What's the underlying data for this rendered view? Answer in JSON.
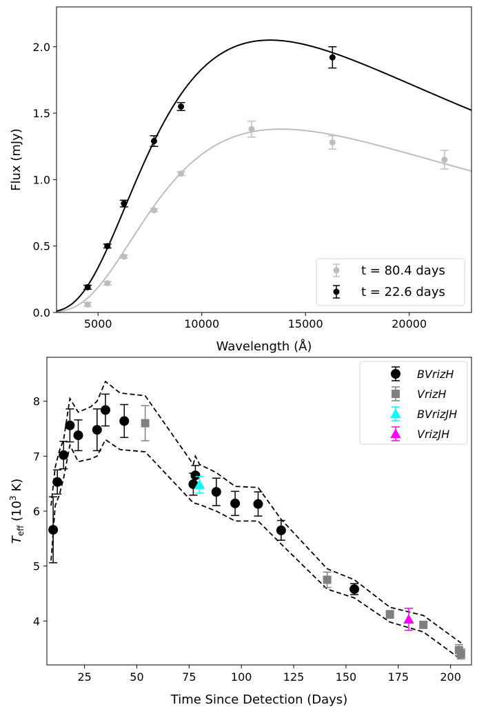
{
  "chart_data": [
    {
      "type": "line",
      "xlabel": "Wavelength (Å)",
      "ylabel": "Flux (mJy)",
      "xlim": [
        3000,
        23000
      ],
      "ylim": [
        0.0,
        2.3
      ],
      "xticks": [
        5000,
        10000,
        15000,
        20000
      ],
      "xtick_labels": [
        "5000",
        "10000",
        "15000",
        "20000"
      ],
      "yticks": [
        0.0,
        0.5,
        1.0,
        1.5,
        2.0
      ],
      "ytick_labels": [
        "0.0",
        "0.5",
        "1.0",
        "1.5",
        "2.0"
      ],
      "grid": false,
      "legend_position": "lower-right",
      "series": [
        {
          "name": "t = 80.4 days",
          "color": "#bdbdbd",
          "model": "blackbody",
          "peak_wavelength": 13000,
          "peak_flux": 1.38,
          "points": [
            {
              "x": 4500,
              "y": 0.06,
              "err": 0.015
            },
            {
              "x": 5450,
              "y": 0.22,
              "err": 0.012
            },
            {
              "x": 6250,
              "y": 0.42,
              "err": 0.012
            },
            {
              "x": 7700,
              "y": 0.77,
              "err": 0.012
            },
            {
              "x": 9000,
              "y": 1.045,
              "err": 0.015
            },
            {
              "x": 12400,
              "y": 1.38,
              "err": 0.06
            },
            {
              "x": 16300,
              "y": 1.28,
              "err": 0.05
            },
            {
              "x": 21700,
              "y": 1.15,
              "err": 0.07
            }
          ]
        },
        {
          "name": "t = 22.6 days",
          "color": "#000000",
          "model": "blackbody",
          "peak_wavelength": 12500,
          "peak_flux": 2.05,
          "points": [
            {
              "x": 4500,
              "y": 0.19,
              "err": 0.015
            },
            {
              "x": 5450,
              "y": 0.5,
              "err": 0.015
            },
            {
              "x": 6250,
              "y": 0.82,
              "err": 0.025
            },
            {
              "x": 7700,
              "y": 1.29,
              "err": 0.04
            },
            {
              "x": 9000,
              "y": 1.55,
              "err": 0.03
            },
            {
              "x": 16300,
              "y": 1.92,
              "err": 0.08
            }
          ]
        }
      ]
    },
    {
      "type": "scatter",
      "xlabel": "Time Since Detection (Days)",
      "ylabel_main": "T",
      "ylabel_sub": "eff",
      "ylabel_rest": " (10",
      "ylabel_sup": "3",
      "ylabel_unit": " K)",
      "xlim": [
        7,
        210
      ],
      "ylim": [
        3.2,
        8.8
      ],
      "xticks": [
        25,
        50,
        75,
        100,
        125,
        150,
        175,
        200
      ],
      "xtick_labels": [
        "25",
        "50",
        "75",
        "100",
        "125",
        "150",
        "175",
        "200"
      ],
      "yticks": [
        4,
        5,
        6,
        7,
        8
      ],
      "ytick_labels": [
        "4",
        "5",
        "6",
        "7",
        "8"
      ],
      "grid": false,
      "legend_position": "top-right",
      "series": [
        {
          "name": "BVrizH",
          "marker": "circle",
          "color": "#000000",
          "points": [
            {
              "x": 10,
              "y": 5.66,
              "err": 0.6
            },
            {
              "x": 12,
              "y": 6.53,
              "err": 0.22
            },
            {
              "x": 15,
              "y": 7.02,
              "err": 0.25
            },
            {
              "x": 18,
              "y": 7.56,
              "err": 0.3
            },
            {
              "x": 22,
              "y": 7.38,
              "err": 0.28
            },
            {
              "x": 31,
              "y": 7.48,
              "err": 0.38
            },
            {
              "x": 35,
              "y": 7.84,
              "err": 0.29
            },
            {
              "x": 44,
              "y": 7.64,
              "err": 0.3
            },
            {
              "x": 77,
              "y": 6.49,
              "err": 0.2
            },
            {
              "x": 78,
              "y": 6.65,
              "err": 0.18
            },
            {
              "x": 88,
              "y": 6.35,
              "err": 0.25
            },
            {
              "x": 97,
              "y": 6.14,
              "err": 0.22
            },
            {
              "x": 108,
              "y": 6.13,
              "err": 0.22
            },
            {
              "x": 119,
              "y": 5.65,
              "err": 0.18
            },
            {
              "x": 154,
              "y": 4.58,
              "err": 0.1
            }
          ]
        },
        {
          "name": "VrizH",
          "marker": "square",
          "color": "#808080",
          "points": [
            {
              "x": 54,
              "y": 7.6,
              "err": 0.32
            },
            {
              "x": 141,
              "y": 4.75,
              "err": 0.14
            },
            {
              "x": 171,
              "y": 4.12,
              "err": 0.07
            },
            {
              "x": 187,
              "y": 3.93,
              "err": 0.06
            },
            {
              "x": 204,
              "y": 3.47,
              "err": 0.1
            },
            {
              "x": 205,
              "y": 3.4,
              "err": 0.09
            }
          ]
        },
        {
          "name": "BVrizJH",
          "marker": "triangle",
          "color": "#00ffff",
          "points": [
            {
              "x": 80,
              "y": 6.48,
              "err": 0.15
            }
          ]
        },
        {
          "name": "VrizJH",
          "marker": "triangle",
          "color": "#ff00ff",
          "points": [
            {
              "x": 180,
              "y": 4.03,
              "err": 0.2
            }
          ]
        }
      ],
      "upper_envelope": [
        [
          9,
          6.1
        ],
        [
          11,
          6.8
        ],
        [
          13,
          7.1
        ],
        [
          15,
          7.3
        ],
        [
          18,
          8.05
        ],
        [
          22,
          7.8
        ],
        [
          28,
          7.9
        ],
        [
          31,
          8.0
        ],
        [
          35,
          8.36
        ],
        [
          42,
          8.15
        ],
        [
          54,
          8.1
        ],
        [
          77,
          6.85
        ],
        [
          78,
          7.0
        ],
        [
          80,
          6.85
        ],
        [
          88,
          6.7
        ],
        [
          97,
          6.45
        ],
        [
          108,
          6.43
        ],
        [
          119,
          5.85
        ],
        [
          141,
          4.95
        ],
        [
          154,
          4.75
        ],
        [
          171,
          4.25
        ],
        [
          187,
          4.1
        ],
        [
          205,
          3.6
        ]
      ],
      "lower_envelope": [
        [
          9,
          5.1
        ],
        [
          11,
          6.1
        ],
        [
          13,
          6.3
        ],
        [
          15,
          6.6
        ],
        [
          18,
          7.2
        ],
        [
          22,
          6.9
        ],
        [
          28,
          6.95
        ],
        [
          31,
          7.0
        ],
        [
          35,
          7.3
        ],
        [
          42,
          7.12
        ],
        [
          54,
          7.08
        ],
        [
          77,
          6.15
        ],
        [
          80,
          6.12
        ],
        [
          88,
          6.0
        ],
        [
          97,
          5.82
        ],
        [
          108,
          5.82
        ],
        [
          119,
          5.4
        ],
        [
          141,
          4.58
        ],
        [
          154,
          4.42
        ],
        [
          171,
          3.98
        ],
        [
          187,
          3.8
        ],
        [
          205,
          3.3
        ]
      ],
      "envelope_style": "dashed"
    }
  ]
}
